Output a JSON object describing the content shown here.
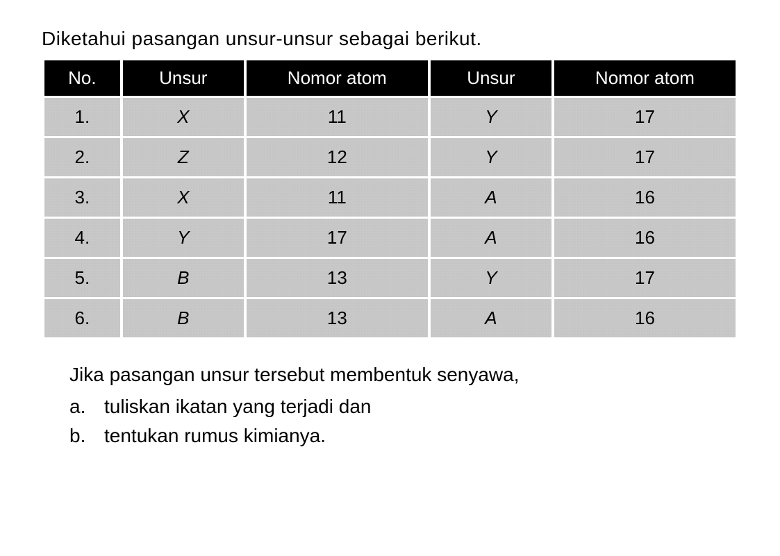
{
  "intro": "Diketahui pasangan unsur-unsur sebagai berikut.",
  "table": {
    "headers": {
      "no": "No.",
      "unsur1": "Unsur",
      "nomor1": "Nomor atom",
      "unsur2": "Unsur",
      "nomor2": "Nomor atom"
    },
    "rows": [
      {
        "no": "1.",
        "unsur1": "X",
        "nomor1": "11",
        "unsur2": "Y",
        "nomor2": "17"
      },
      {
        "no": "2.",
        "unsur1": "Z",
        "nomor1": "12",
        "unsur2": "Y",
        "nomor2": "17"
      },
      {
        "no": "3.",
        "unsur1": "X",
        "nomor1": "11",
        "unsur2": "A",
        "nomor2": "16"
      },
      {
        "no": "4.",
        "unsur1": "Y",
        "nomor1": "17",
        "unsur2": "A",
        "nomor2": "16"
      },
      {
        "no": "5.",
        "unsur1": "B",
        "nomor1": "13",
        "unsur2": "Y",
        "nomor2": "17"
      },
      {
        "no": "6.",
        "unsur1": "B",
        "nomor1": "13",
        "unsur2": "A",
        "nomor2": "16"
      }
    ]
  },
  "question": {
    "intro": "Jika pasangan unsur tersebut membentuk senyawa,",
    "items": [
      {
        "label": "a.",
        "text": "tuliskan ikatan yang terjadi dan"
      },
      {
        "label": "b.",
        "text": "tentukan rumus kimianya."
      }
    ]
  },
  "styling": {
    "header_bg": "#000000",
    "header_fg": "#ffffff",
    "cell_bg": "#c8c8c8",
    "cell_fg": "#000000",
    "body_bg": "#ffffff",
    "font_size_body": 28,
    "font_size_table": 26
  }
}
